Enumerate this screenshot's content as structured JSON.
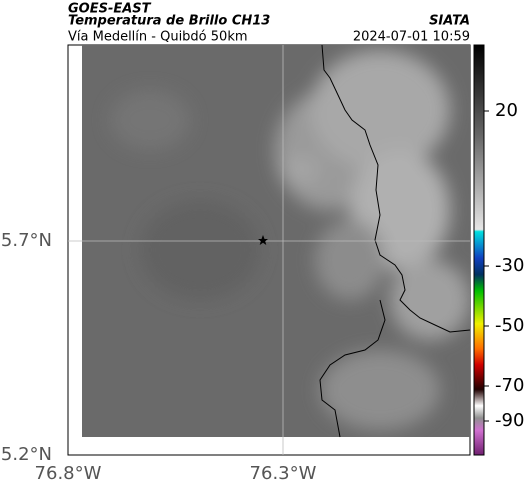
{
  "header": {
    "title": "GOES-EAST",
    "subtitle": "Temperatura de Brillo CH13",
    "region": "Vía Medellín - Quibdó 50km",
    "source": "SIATA",
    "timestamp": "2024-07-01 10:59"
  },
  "map": {
    "lat_labels": [
      "5.7°N",
      "5.2°N"
    ],
    "lon_labels": [
      "76.8°W",
      "76.3°W"
    ]
  },
  "colorbar": {
    "labels": [
      "20",
      "-30",
      "-50",
      "-70",
      "-90"
    ]
  }
}
